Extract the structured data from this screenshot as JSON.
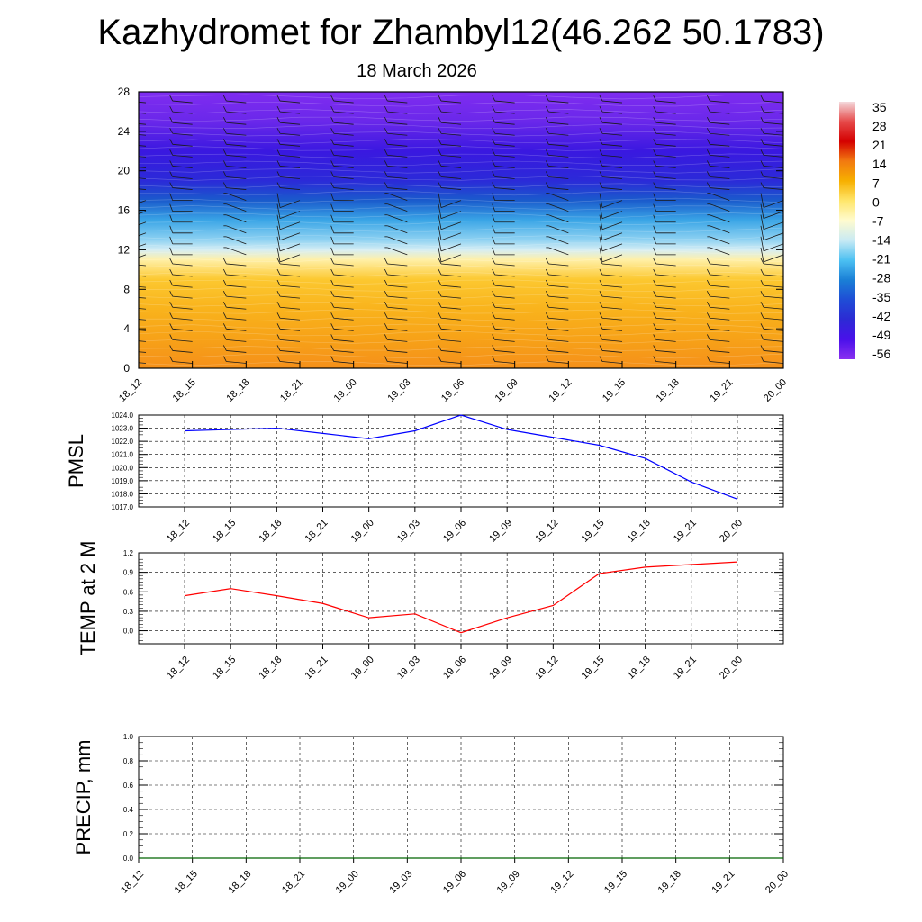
{
  "title": "Kazhydromet for Zhambyl12(46.262 50.1783)",
  "subtitle": "18 March 2026",
  "colors": {
    "pmsl_line": "#0000ff",
    "temp_line": "#ff0000",
    "precip_line": "#006400",
    "grid": "#000000"
  },
  "chart_data": [
    {
      "type": "heatmap",
      "name": "vertical-cross-section",
      "x_ticks": [
        "18_12",
        "18_15",
        "18_18",
        "18_21",
        "19_00",
        "19_03",
        "19_06",
        "19_09",
        "19_12",
        "19_15",
        "19_18",
        "19_21",
        "20_00"
      ],
      "y_ticks": [
        "0",
        "4",
        "8",
        "12",
        "16",
        "20",
        "24",
        "28"
      ],
      "ylim": [
        0,
        28
      ],
      "colorbar": {
        "labels": [
          "35",
          "28",
          "21",
          "14",
          "7",
          "0",
          "-7",
          "-14",
          "-21",
          "-28",
          "-35",
          "-42",
          "-49",
          "-56"
        ],
        "stops": [
          "#f4d9dc",
          "#e64a4a",
          "#d40000",
          "#f27a10",
          "#f7b000",
          "#ffe66b",
          "#fffbcf",
          "#c8eaf4",
          "#4cc0f2",
          "#1a7fd6",
          "#1f4dd6",
          "#2c2ad4",
          "#4a10ea",
          "#8a30f0"
        ]
      },
      "bands": [
        {
          "level": 0,
          "color": "#f5901a"
        },
        {
          "level": 3,
          "color": "#f7a218"
        },
        {
          "level": 6,
          "color": "#f9b31c"
        },
        {
          "level": 9,
          "color": "#fcc830"
        },
        {
          "level": 11,
          "color": "#fff0a8"
        },
        {
          "level": 12,
          "color": "#d6eef4"
        },
        {
          "level": 13,
          "color": "#8fd2f2"
        },
        {
          "level": 15,
          "color": "#3aa5e6"
        },
        {
          "level": 17,
          "color": "#1a5bcc"
        },
        {
          "level": 19,
          "color": "#2b2ad8"
        },
        {
          "level": 22,
          "color": "#3a18e0"
        },
        {
          "level": 25,
          "color": "#6a28ea"
        },
        {
          "level": 28,
          "color": "#7f2cf0"
        }
      ],
      "wind_barbs": true
    },
    {
      "type": "line",
      "name": "PMSL",
      "ylabel": "PMSL",
      "x": [
        "18_12",
        "18_15",
        "18_18",
        "18_21",
        "19_00",
        "19_03",
        "19_06",
        "19_09",
        "19_12",
        "19_15",
        "19_18",
        "19_21",
        "20_00"
      ],
      "values": [
        1022.8,
        1022.9,
        1023.0,
        1022.6,
        1022.2,
        1022.8,
        1024.0,
        1022.9,
        1022.3,
        1021.7,
        1020.7,
        1018.9,
        1017.6
      ],
      "y_ticks": [
        "1017.0",
        "1018.0",
        "1019.0",
        "1020.0",
        "1021.0",
        "1022.0",
        "1023.0",
        "1024.0"
      ],
      "ylim": [
        1017,
        1024
      ],
      "grid": true
    },
    {
      "type": "line",
      "name": "TEMP at 2 M",
      "ylabel": "TEMP at 2 M",
      "x": [
        "18_12",
        "18_15",
        "18_18",
        "18_21",
        "19_00",
        "19_03",
        "19_06",
        "19_09",
        "19_12",
        "19_15",
        "19_18",
        "19_21",
        "20_00"
      ],
      "values": [
        0.54,
        0.65,
        0.54,
        0.42,
        0.2,
        0.26,
        -0.03,
        0.2,
        0.39,
        0.88,
        0.98,
        1.02,
        1.06
      ],
      "y_ticks": [
        "0.0",
        "0.3",
        "0.6",
        "0.9",
        "1.2"
      ],
      "ylim": [
        -0.2,
        1.2
      ],
      "grid": true
    },
    {
      "type": "line",
      "name": "PRECIP, mm",
      "ylabel": "PRECIP, mm",
      "x": [
        "18_12",
        "18_15",
        "18_18",
        "18_21",
        "19_00",
        "19_03",
        "19_06",
        "19_09",
        "19_12",
        "19_15",
        "19_18",
        "19_21",
        "20_00"
      ],
      "values": [
        0,
        0,
        0,
        0,
        0,
        0,
        0,
        0,
        0,
        0,
        0,
        0,
        0
      ],
      "y_ticks": [
        "0.0",
        "0.2",
        "0.4",
        "0.6",
        "0.8",
        "1.0"
      ],
      "ylim": [
        0,
        1
      ],
      "grid": true
    }
  ]
}
